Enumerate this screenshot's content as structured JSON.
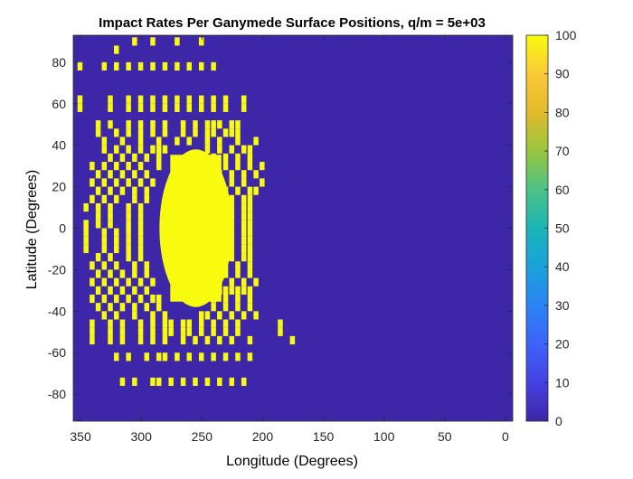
{
  "chart_data": {
    "type": "heatmap",
    "title": "Impact Rates Per Ganymede Surface Positions, q/m = 5e+03",
    "xlabel": "Longitude (Degrees)",
    "ylabel": "Latitude (Degrees)",
    "x_direction": "reversed",
    "xlim": [
      -6,
      356
    ],
    "ylim": [
      -93,
      93
    ],
    "xticks": [
      350,
      300,
      250,
      200,
      150,
      100,
      50,
      0
    ],
    "yticks": [
      80,
      60,
      40,
      20,
      0,
      -20,
      -40,
      -60,
      -80
    ],
    "cell_size_degrees": {
      "longitude": 5,
      "latitude": 4
    },
    "background_value": 0,
    "colorbar": {
      "colormap": "parula",
      "limits": [
        0,
        100
      ],
      "ticks": [
        0,
        10,
        20,
        30,
        40,
        50,
        60,
        70,
        80,
        90,
        100
      ],
      "low_color": "#3E26A8",
      "high_color": "#F9FB0E"
    },
    "core_region": {
      "lon_range": [
        225,
        285
      ],
      "lat_range": [
        -38,
        38
      ],
      "value": 100
    },
    "hit_cells": [
      [
        305,
        90
      ],
      [
        290,
        90
      ],
      [
        270,
        90
      ],
      [
        250,
        90
      ],
      [
        320,
        86
      ],
      [
        350,
        78
      ],
      [
        330,
        78
      ],
      [
        320,
        78
      ],
      [
        310,
        78
      ],
      [
        300,
        78
      ],
      [
        290,
        78
      ],
      [
        280,
        78
      ],
      [
        270,
        78
      ],
      [
        260,
        78
      ],
      [
        250,
        78
      ],
      [
        240,
        78
      ],
      [
        350,
        62
      ],
      [
        350,
        58
      ],
      [
        325,
        62
      ],
      [
        310,
        62
      ],
      [
        300,
        62
      ],
      [
        290,
        62
      ],
      [
        280,
        62
      ],
      [
        270,
        62
      ],
      [
        260,
        62
      ],
      [
        250,
        62
      ],
      [
        240,
        62
      ],
      [
        230,
        62
      ],
      [
        215,
        62
      ],
      [
        325,
        58
      ],
      [
        310,
        58
      ],
      [
        300,
        58
      ],
      [
        290,
        58
      ],
      [
        280,
        58
      ],
      [
        270,
        58
      ],
      [
        260,
        58
      ],
      [
        250,
        58
      ],
      [
        240,
        58
      ],
      [
        230,
        58
      ],
      [
        215,
        58
      ],
      [
        335,
        50
      ],
      [
        325,
        50
      ],
      [
        310,
        50
      ],
      [
        300,
        50
      ],
      [
        290,
        50
      ],
      [
        280,
        50
      ],
      [
        265,
        50
      ],
      [
        255,
        50
      ],
      [
        245,
        50
      ],
      [
        240,
        50
      ],
      [
        235,
        50
      ],
      [
        225,
        50
      ],
      [
        220,
        50
      ],
      [
        335,
        46
      ],
      [
        320,
        46
      ],
      [
        310,
        46
      ],
      [
        300,
        46
      ],
      [
        290,
        46
      ],
      [
        280,
        46
      ],
      [
        265,
        46
      ],
      [
        255,
        46
      ],
      [
        245,
        46
      ],
      [
        240,
        46
      ],
      [
        230,
        46
      ],
      [
        225,
        46
      ],
      [
        220,
        46
      ],
      [
        330,
        42
      ],
      [
        315,
        42
      ],
      [
        300,
        42
      ],
      [
        285,
        42
      ],
      [
        270,
        42
      ],
      [
        260,
        42
      ],
      [
        245,
        42
      ],
      [
        235,
        42
      ],
      [
        220,
        42
      ],
      [
        205,
        42
      ],
      [
        330,
        38
      ],
      [
        320,
        38
      ],
      [
        310,
        38
      ],
      [
        300,
        38
      ],
      [
        290,
        38
      ],
      [
        285,
        38
      ],
      [
        280,
        38
      ],
      [
        245,
        38
      ],
      [
        235,
        38
      ],
      [
        225,
        38
      ],
      [
        215,
        38
      ],
      [
        210,
        38
      ],
      [
        325,
        34
      ],
      [
        315,
        34
      ],
      [
        305,
        34
      ],
      [
        295,
        34
      ],
      [
        285,
        34
      ],
      [
        240,
        34
      ],
      [
        230,
        34
      ],
      [
        220,
        34
      ],
      [
        210,
        34
      ],
      [
        340,
        30
      ],
      [
        330,
        30
      ],
      [
        320,
        30
      ],
      [
        310,
        30
      ],
      [
        300,
        30
      ],
      [
        285,
        30
      ],
      [
        240,
        30
      ],
      [
        230,
        30
      ],
      [
        220,
        30
      ],
      [
        210,
        30
      ],
      [
        200,
        30
      ],
      [
        335,
        26
      ],
      [
        325,
        26
      ],
      [
        315,
        26
      ],
      [
        305,
        26
      ],
      [
        295,
        26
      ],
      [
        235,
        26
      ],
      [
        225,
        26
      ],
      [
        215,
        26
      ],
      [
        205,
        26
      ],
      [
        340,
        22
      ],
      [
        330,
        22
      ],
      [
        320,
        22
      ],
      [
        310,
        22
      ],
      [
        300,
        22
      ],
      [
        290,
        22
      ],
      [
        235,
        22
      ],
      [
        225,
        22
      ],
      [
        215,
        22
      ],
      [
        200,
        22
      ],
      [
        335,
        18
      ],
      [
        325,
        18
      ],
      [
        315,
        18
      ],
      [
        305,
        18
      ],
      [
        295,
        18
      ],
      [
        230,
        18
      ],
      [
        220,
        18
      ],
      [
        210,
        18
      ],
      [
        205,
        18
      ],
      [
        340,
        14
      ],
      [
        330,
        14
      ],
      [
        320,
        14
      ],
      [
        305,
        14
      ],
      [
        295,
        14
      ],
      [
        225,
        14
      ],
      [
        215,
        14
      ],
      [
        210,
        14
      ],
      [
        345,
        10
      ],
      [
        335,
        10
      ],
      [
        325,
        10
      ],
      [
        310,
        10
      ],
      [
        300,
        10
      ],
      [
        225,
        10
      ],
      [
        215,
        10
      ],
      [
        210,
        10
      ],
      [
        335,
        6
      ],
      [
        325,
        6
      ],
      [
        310,
        6
      ],
      [
        300,
        6
      ],
      [
        225,
        6
      ],
      [
        215,
        6
      ],
      [
        210,
        6
      ],
      [
        345,
        2
      ],
      [
        335,
        2
      ],
      [
        325,
        2
      ],
      [
        310,
        2
      ],
      [
        300,
        2
      ],
      [
        225,
        2
      ],
      [
        215,
        2
      ],
      [
        210,
        2
      ],
      [
        345,
        -2
      ],
      [
        330,
        -2
      ],
      [
        320,
        -2
      ],
      [
        310,
        -2
      ],
      [
        300,
        -2
      ],
      [
        225,
        -2
      ],
      [
        215,
        -2
      ],
      [
        210,
        -2
      ],
      [
        345,
        -6
      ],
      [
        330,
        -6
      ],
      [
        320,
        -6
      ],
      [
        310,
        -6
      ],
      [
        300,
        -6
      ],
      [
        225,
        -6
      ],
      [
        215,
        -6
      ],
      [
        210,
        -6
      ],
      [
        345,
        -10
      ],
      [
        330,
        -10
      ],
      [
        320,
        -10
      ],
      [
        310,
        -10
      ],
      [
        300,
        -10
      ],
      [
        225,
        -10
      ],
      [
        215,
        -10
      ],
      [
        210,
        -10
      ],
      [
        335,
        -14
      ],
      [
        325,
        -14
      ],
      [
        310,
        -14
      ],
      [
        300,
        -14
      ],
      [
        225,
        -14
      ],
      [
        215,
        -14
      ],
      [
        210,
        -14
      ],
      [
        340,
        -18
      ],
      [
        330,
        -18
      ],
      [
        320,
        -18
      ],
      [
        305,
        -18
      ],
      [
        295,
        -18
      ],
      [
        230,
        -18
      ],
      [
        220,
        -18
      ],
      [
        210,
        -18
      ],
      [
        335,
        -22
      ],
      [
        325,
        -22
      ],
      [
        315,
        -22
      ],
      [
        305,
        -22
      ],
      [
        295,
        -22
      ],
      [
        230,
        -22
      ],
      [
        220,
        -22
      ],
      [
        210,
        -22
      ],
      [
        340,
        -26
      ],
      [
        330,
        -26
      ],
      [
        320,
        -26
      ],
      [
        310,
        -26
      ],
      [
        300,
        -26
      ],
      [
        290,
        -26
      ],
      [
        235,
        -26
      ],
      [
        225,
        -26
      ],
      [
        215,
        -26
      ],
      [
        205,
        -26
      ],
      [
        335,
        -30
      ],
      [
        325,
        -30
      ],
      [
        315,
        -30
      ],
      [
        305,
        -30
      ],
      [
        295,
        -30
      ],
      [
        240,
        -30
      ],
      [
        235,
        -30
      ],
      [
        230,
        -30
      ],
      [
        225,
        -30
      ],
      [
        220,
        -30
      ],
      [
        215,
        -30
      ],
      [
        210,
        -30
      ],
      [
        340,
        -34
      ],
      [
        330,
        -34
      ],
      [
        320,
        -34
      ],
      [
        310,
        -34
      ],
      [
        300,
        -34
      ],
      [
        290,
        -34
      ],
      [
        285,
        -34
      ],
      [
        240,
        -34
      ],
      [
        230,
        -34
      ],
      [
        220,
        -34
      ],
      [
        210,
        -34
      ],
      [
        335,
        -38
      ],
      [
        325,
        -38
      ],
      [
        315,
        -38
      ],
      [
        305,
        -38
      ],
      [
        295,
        -38
      ],
      [
        285,
        -38
      ],
      [
        240,
        -38
      ],
      [
        230,
        -38
      ],
      [
        220,
        -38
      ],
      [
        210,
        -38
      ],
      [
        330,
        -42
      ],
      [
        320,
        -42
      ],
      [
        305,
        -42
      ],
      [
        290,
        -42
      ],
      [
        280,
        -42
      ],
      [
        250,
        -42
      ],
      [
        245,
        -42
      ],
      [
        235,
        -42
      ],
      [
        225,
        -42
      ],
      [
        215,
        -42
      ],
      [
        205,
        -42
      ],
      [
        340,
        -46
      ],
      [
        325,
        -46
      ],
      [
        315,
        -46
      ],
      [
        300,
        -46
      ],
      [
        290,
        -46
      ],
      [
        280,
        -46
      ],
      [
        275,
        -46
      ],
      [
        265,
        -46
      ],
      [
        260,
        -46
      ],
      [
        250,
        -46
      ],
      [
        240,
        -46
      ],
      [
        230,
        -46
      ],
      [
        220,
        -46
      ],
      [
        185,
        -46
      ],
      [
        340,
        -50
      ],
      [
        325,
        -50
      ],
      [
        315,
        -50
      ],
      [
        300,
        -50
      ],
      [
        290,
        -50
      ],
      [
        280,
        -50
      ],
      [
        275,
        -50
      ],
      [
        265,
        -50
      ],
      [
        260,
        -50
      ],
      [
        250,
        -50
      ],
      [
        240,
        -50
      ],
      [
        230,
        -50
      ],
      [
        220,
        -50
      ],
      [
        185,
        -50
      ],
      [
        340,
        -54
      ],
      [
        325,
        -54
      ],
      [
        315,
        -54
      ],
      [
        300,
        -54
      ],
      [
        290,
        -54
      ],
      [
        280,
        -54
      ],
      [
        265,
        -54
      ],
      [
        255,
        -54
      ],
      [
        245,
        -54
      ],
      [
        235,
        -54
      ],
      [
        225,
        -54
      ],
      [
        210,
        -54
      ],
      [
        175,
        -54
      ],
      [
        320,
        -62
      ],
      [
        310,
        -62
      ],
      [
        295,
        -62
      ],
      [
        285,
        -62
      ],
      [
        280,
        -62
      ],
      [
        270,
        -62
      ],
      [
        260,
        -62
      ],
      [
        250,
        -62
      ],
      [
        240,
        -62
      ],
      [
        230,
        -62
      ],
      [
        220,
        -62
      ],
      [
        210,
        -62
      ],
      [
        315,
        -74
      ],
      [
        305,
        -74
      ],
      [
        290,
        -74
      ],
      [
        285,
        -74
      ],
      [
        275,
        -74
      ],
      [
        265,
        -74
      ],
      [
        255,
        -74
      ],
      [
        245,
        -74
      ],
      [
        235,
        -74
      ],
      [
        225,
        -74
      ],
      [
        215,
        -74
      ]
    ]
  }
}
